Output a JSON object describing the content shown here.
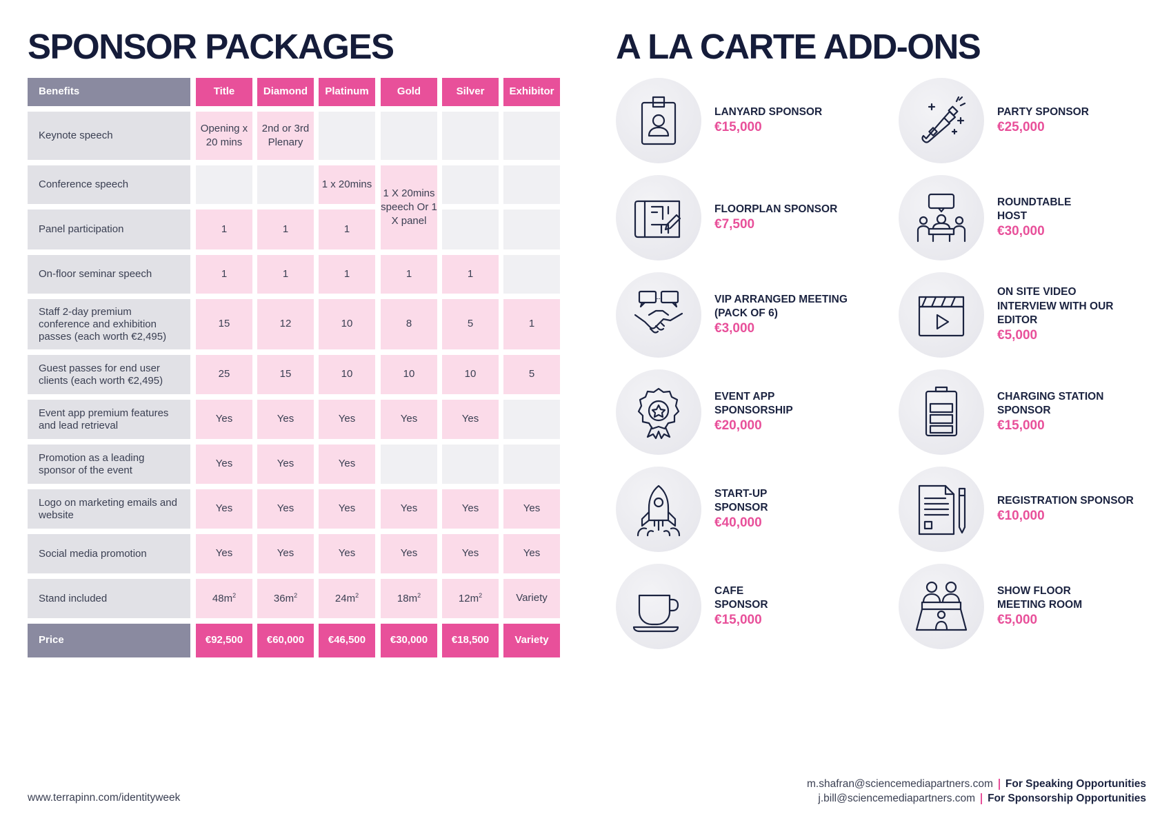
{
  "sponsor_packages": {
    "title": "SPONSOR PACKAGES",
    "header_label": "Benefits",
    "tiers": [
      "Title",
      "Diamond",
      "Platinum",
      "Gold",
      "Silver",
      "Exhibitor"
    ],
    "rows": [
      {
        "label": "Keynote speech",
        "cells": [
          "Opening x 20 mins",
          "2nd or 3rd Plenary",
          "",
          "",
          "",
          ""
        ]
      },
      {
        "label": "Conference speech",
        "cells": [
          "",
          "",
          "1 x 20mins",
          "1 X 20mins speech Or 1 X panel",
          "",
          ""
        ]
      },
      {
        "label": "Panel participation",
        "cells": [
          "1",
          "1",
          "1",
          "",
          "",
          ""
        ]
      },
      {
        "label": "On-floor seminar speech",
        "cells": [
          "1",
          "1",
          "1",
          "1",
          "1",
          ""
        ]
      },
      {
        "label": "Staff 2-day premium conference and exhibition passes (each worth €2,495)",
        "cells": [
          "15",
          "12",
          "10",
          "8",
          "5",
          "1"
        ]
      },
      {
        "label": "Guest passes for end user clients (each worth €2,495)",
        "cells": [
          "25",
          "15",
          "10",
          "10",
          "10",
          "5"
        ]
      },
      {
        "label": "Event app premium features and lead retrieval",
        "cells": [
          "Yes",
          "Yes",
          "Yes",
          "Yes",
          "Yes",
          ""
        ]
      },
      {
        "label": "Promotion as a leading sponsor of the event",
        "cells": [
          "Yes",
          "Yes",
          "Yes",
          "",
          "",
          ""
        ]
      },
      {
        "label": "Logo on marketing emails and website",
        "cells": [
          "Yes",
          "Yes",
          "Yes",
          "Yes",
          "Yes",
          "Yes"
        ]
      },
      {
        "label": "Social media promotion",
        "cells": [
          "Yes",
          "Yes",
          "Yes",
          "Yes",
          "Yes",
          "Yes"
        ]
      },
      {
        "label": "Stand included",
        "cells": [
          "48m²",
          "36m²",
          "24m²",
          "18m²",
          "12m²",
          "Variety"
        ]
      }
    ],
    "price_label": "Price",
    "prices": [
      "€92,500",
      "€60,000",
      "€46,500",
      "€30,000",
      "€18,500",
      "Variety"
    ],
    "colors": {
      "accent": "#e8509a",
      "header_grey": "#8a8aa0",
      "cell_pink": "#fbdbe9",
      "cell_grey": "#f0f0f3",
      "label_grey": "#e1e1e6"
    }
  },
  "addons": {
    "title": "A LA CARTE ADD-ONS",
    "items": [
      {
        "name": "LANYARD SPONSOR",
        "price": "€15,000",
        "icon": "id-badge-icon"
      },
      {
        "name": "PARTY SPONSOR",
        "price": "€25,000",
        "icon": "champagne-bottle-icon"
      },
      {
        "name": "FLOORPLAN SPONSOR",
        "price": "€7,500",
        "icon": "floorplan-blueprint-icon"
      },
      {
        "name": "ROUNDTABLE\nHOST",
        "price": "€30,000",
        "icon": "roundtable-meeting-icon"
      },
      {
        "name": "VIP ARRANGED MEETING\n(PACK OF 6)",
        "price": "€3,000",
        "icon": "handshake-icon"
      },
      {
        "name": "ON SITE VIDEO\nINTERVIEW WITH OUR\nEDITOR",
        "price": "€5,000",
        "icon": "video-clapper-icon"
      },
      {
        "name": "EVENT APP\nSPONSORSHIP",
        "price": "€20,000",
        "icon": "award-star-badge-icon"
      },
      {
        "name": "CHARGING STATION\nSPONSOR",
        "price": "€15,000",
        "icon": "battery-icon"
      },
      {
        "name": "START-UP\nSPONSOR",
        "price": "€40,000",
        "icon": "rocket-icon"
      },
      {
        "name": "REGISTRATION SPONSOR",
        "price": "€10,000",
        "icon": "document-pen-icon"
      },
      {
        "name": "CAFE\nSPONSOR",
        "price": "€15,000",
        "icon": "coffee-cup-icon"
      },
      {
        "name": "SHOW FLOOR\nMEETING ROOM",
        "price": "€5,000",
        "icon": "meeting-room-icon"
      }
    ]
  },
  "footer": {
    "url": "www.terrapinn.com/identityweek",
    "contacts": [
      {
        "email": "m.shafran@sciencemediapartners.com",
        "purpose": "For Speaking Opportunities"
      },
      {
        "email": "j.bill@sciencemediapartners.com",
        "purpose": "For Sponsorship Opportunities"
      }
    ]
  }
}
